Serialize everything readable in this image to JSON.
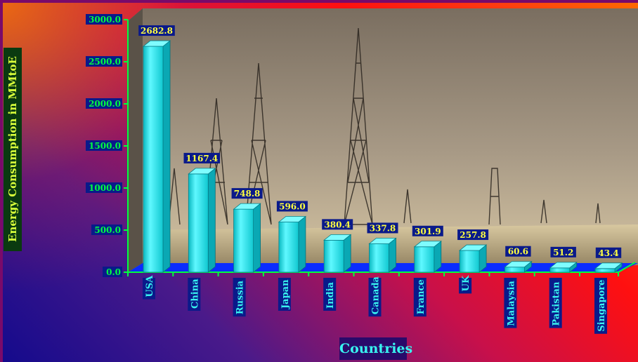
{
  "chart_data": {
    "type": "bar",
    "categories": [
      "USA",
      "China",
      "Russia",
      "Japan",
      "India",
      "Canada",
      "France",
      "UK",
      "Malaysia",
      "Pakistan",
      "Singapore"
    ],
    "values": [
      2682.8,
      1167.4,
      748.8,
      596.0,
      380.4,
      337.8,
      301.9,
      257.8,
      60.6,
      51.2,
      43.4
    ],
    "value_labels": [
      "2682.8",
      "1167.4",
      "748.8",
      "596.0",
      "380.4",
      "337.8",
      "301.9",
      "257.8",
      "60.6",
      "51.2",
      "43.4"
    ],
    "yticks": [
      "0.0",
      "500.0",
      "1000.0",
      "1500.0",
      "2000.0",
      "2500.0",
      "3000.0"
    ],
    "ylim": [
      0,
      3000
    ],
    "xlabel": "Countries",
    "ylabel": "Energy Consumption in MMtoE",
    "title": "",
    "grid": false,
    "colors": {
      "bar_front": "#14e0e0",
      "bar_side": "#0aa8b4",
      "bar_top": "#7ffcff",
      "floor": "#0a2cff",
      "axis": "#00ff40",
      "label_bg": "#0a1a8a",
      "value_text": "#ffff40",
      "tick_text": "#38f4f0"
    }
  }
}
